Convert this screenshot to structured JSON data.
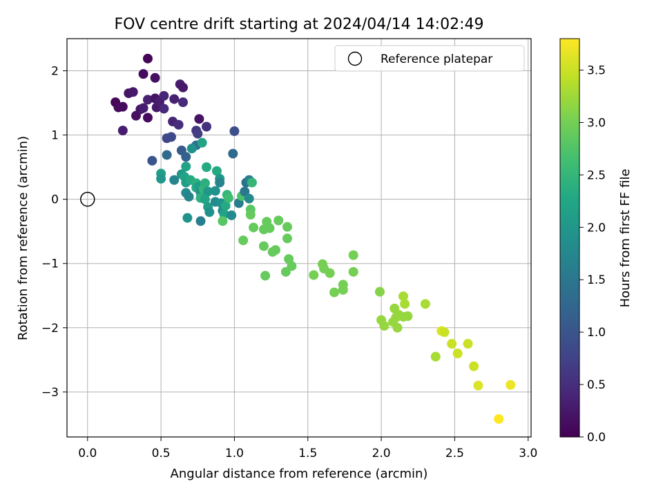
{
  "chart_data": {
    "type": "scatter",
    "title": "FOV centre drift starting at 2024/04/14 14:02:49",
    "xlabel": "Angular distance from reference (arcmin)",
    "ylabel": "Rotation from reference (arcmin)",
    "xlim": [
      -0.14,
      3.02
    ],
    "ylim": [
      -3.7,
      2.5
    ],
    "xticks": [
      0.0,
      0.5,
      1.0,
      1.5,
      2.0,
      2.5,
      3.0
    ],
    "xtick_labels": [
      "0.0",
      "0.5",
      "1.0",
      "1.5",
      "2.0",
      "2.5",
      "3.0"
    ],
    "yticks": [
      -3,
      -2,
      -1,
      0,
      1,
      2
    ],
    "ytick_labels": [
      "−3",
      "−2",
      "−1",
      "0",
      "1",
      "2"
    ],
    "grid": true,
    "legend": {
      "position": "upper right",
      "label": "Reference platepar"
    },
    "reference_point": {
      "x": 0.0,
      "y": 0.0
    },
    "colorbar": {
      "label": "Hours from first FF file",
      "colormap": "viridis",
      "range": [
        0.0,
        3.8
      ],
      "ticks": [
        0.0,
        0.5,
        1.0,
        1.5,
        2.0,
        2.5,
        3.0,
        3.5
      ],
      "tick_labels": [
        "0.0",
        "0.5",
        "1.0",
        "1.5",
        "2.0",
        "2.5",
        "3.0",
        "3.5"
      ]
    },
    "points": [
      {
        "x": 0.41,
        "y": 2.19,
        "c": 0.05
      },
      {
        "x": 0.38,
        "y": 1.95,
        "c": 0.1
      },
      {
        "x": 0.46,
        "y": 1.89,
        "c": 0.15
      },
      {
        "x": 0.19,
        "y": 1.51,
        "c": 0.05
      },
      {
        "x": 0.21,
        "y": 1.43,
        "c": 0.1
      },
      {
        "x": 0.24,
        "y": 1.44,
        "c": 0.12
      },
      {
        "x": 0.28,
        "y": 1.65,
        "c": 0.2
      },
      {
        "x": 0.31,
        "y": 1.67,
        "c": 0.25
      },
      {
        "x": 0.33,
        "y": 1.3,
        "c": 0.15
      },
      {
        "x": 0.36,
        "y": 1.4,
        "c": 0.2
      },
      {
        "x": 0.38,
        "y": 1.42,
        "c": 0.3
      },
      {
        "x": 0.41,
        "y": 1.27,
        "c": 0.1
      },
      {
        "x": 0.41,
        "y": 1.55,
        "c": 0.35
      },
      {
        "x": 0.46,
        "y": 1.57,
        "c": 0.2
      },
      {
        "x": 0.47,
        "y": 1.43,
        "c": 0.25
      },
      {
        "x": 0.49,
        "y": 1.52,
        "c": 0.3
      },
      {
        "x": 0.52,
        "y": 1.61,
        "c": 0.4
      },
      {
        "x": 0.52,
        "y": 1.41,
        "c": 0.45
      },
      {
        "x": 0.59,
        "y": 1.56,
        "c": 0.35
      },
      {
        "x": 0.63,
        "y": 1.79,
        "c": 0.3
      },
      {
        "x": 0.65,
        "y": 1.74,
        "c": 0.25
      },
      {
        "x": 0.65,
        "y": 1.51,
        "c": 0.45
      },
      {
        "x": 0.58,
        "y": 1.21,
        "c": 0.4
      },
      {
        "x": 0.62,
        "y": 1.16,
        "c": 0.5
      },
      {
        "x": 0.24,
        "y": 1.07,
        "c": 0.3
      },
      {
        "x": 0.76,
        "y": 1.25,
        "c": 0.2
      },
      {
        "x": 0.74,
        "y": 1.07,
        "c": 0.6
      },
      {
        "x": 0.75,
        "y": 1.02,
        "c": 0.7
      },
      {
        "x": 0.81,
        "y": 1.13,
        "c": 0.55
      },
      {
        "x": 0.54,
        "y": 0.95,
        "c": 0.8
      },
      {
        "x": 0.57,
        "y": 0.97,
        "c": 0.85
      },
      {
        "x": 1.0,
        "y": 1.06,
        "c": 0.9
      },
      {
        "x": 0.44,
        "y": 0.6,
        "c": 1.0
      },
      {
        "x": 0.54,
        "y": 0.69,
        "c": 1.3
      },
      {
        "x": 0.64,
        "y": 0.76,
        "c": 1.1
      },
      {
        "x": 0.67,
        "y": 0.66,
        "c": 1.2
      },
      {
        "x": 0.74,
        "y": 0.84,
        "c": 1.4
      },
      {
        "x": 0.71,
        "y": 0.79,
        "c": 1.9
      },
      {
        "x": 0.78,
        "y": 0.88,
        "c": 2.2
      },
      {
        "x": 0.99,
        "y": 0.71,
        "c": 1.3
      },
      {
        "x": 0.5,
        "y": 0.4,
        "c": 2.1
      },
      {
        "x": 0.5,
        "y": 0.32,
        "c": 2.0
      },
      {
        "x": 0.59,
        "y": 0.3,
        "c": 1.7
      },
      {
        "x": 0.64,
        "y": 0.39,
        "c": 2.0
      },
      {
        "x": 0.66,
        "y": 0.35,
        "c": 2.2
      },
      {
        "x": 0.67,
        "y": 0.51,
        "c": 2.2
      },
      {
        "x": 0.67,
        "y": 0.26,
        "c": 2.1
      },
      {
        "x": 0.67,
        "y": 0.1,
        "c": 1.8
      },
      {
        "x": 0.69,
        "y": 0.04,
        "c": 1.7
      },
      {
        "x": 0.7,
        "y": 0.3,
        "c": 2.3
      },
      {
        "x": 0.74,
        "y": 0.25,
        "c": 2.4
      },
      {
        "x": 0.74,
        "y": 0.18,
        "c": 2.3
      },
      {
        "x": 0.76,
        "y": 0.2,
        "c": 2.1
      },
      {
        "x": 0.77,
        "y": 0.1,
        "c": 1.9
      },
      {
        "x": 0.77,
        "y": 0.02,
        "c": 2.4
      },
      {
        "x": 0.79,
        "y": 0.16,
        "c": 2.5
      },
      {
        "x": 0.8,
        "y": 0.25,
        "c": 2.4
      },
      {
        "x": 0.81,
        "y": 0.5,
        "c": 2.3
      },
      {
        "x": 0.82,
        "y": 0.12,
        "c": 2.0
      },
      {
        "x": 0.8,
        "y": 0.0,
        "c": 2.2
      },
      {
        "x": 0.82,
        "y": -0.12,
        "c": 2.1
      },
      {
        "x": 0.83,
        "y": -0.2,
        "c": 1.9
      },
      {
        "x": 0.87,
        "y": 0.13,
        "c": 1.9
      },
      {
        "x": 0.88,
        "y": 0.44,
        "c": 2.3
      },
      {
        "x": 0.87,
        "y": -0.04,
        "c": 1.8
      },
      {
        "x": 0.9,
        "y": 0.32,
        "c": 2.0
      },
      {
        "x": 0.9,
        "y": 0.26,
        "c": 1.7
      },
      {
        "x": 0.91,
        "y": -0.06,
        "c": 1.9
      },
      {
        "x": 0.92,
        "y": -0.18,
        "c": 1.8
      },
      {
        "x": 0.93,
        "y": -0.23,
        "c": 2.2
      },
      {
        "x": 0.94,
        "y": -0.1,
        "c": 2.3
      },
      {
        "x": 0.95,
        "y": 0.07,
        "c": 2.5
      },
      {
        "x": 0.96,
        "y": 0.02,
        "c": 2.6
      },
      {
        "x": 0.98,
        "y": -0.25,
        "c": 1.8
      },
      {
        "x": 0.92,
        "y": -0.34,
        "c": 2.8
      },
      {
        "x": 0.68,
        "y": -0.29,
        "c": 1.9
      },
      {
        "x": 0.77,
        "y": -0.34,
        "c": 1.6
      },
      {
        "x": 1.03,
        "y": -0.06,
        "c": 1.6
      },
      {
        "x": 1.05,
        "y": 0.05,
        "c": 2.7
      },
      {
        "x": 1.07,
        "y": 0.12,
        "c": 1.5
      },
      {
        "x": 1.08,
        "y": 0.26,
        "c": 1.4
      },
      {
        "x": 1.1,
        "y": 0.01,
        "c": 1.8
      },
      {
        "x": 1.1,
        "y": 0.3,
        "c": 1.6
      },
      {
        "x": 1.12,
        "y": 0.26,
        "c": 2.5
      },
      {
        "x": 1.11,
        "y": -0.16,
        "c": 2.8
      },
      {
        "x": 1.11,
        "y": -0.24,
        "c": 2.9
      },
      {
        "x": 1.13,
        "y": -0.44,
        "c": 2.9
      },
      {
        "x": 1.06,
        "y": -0.64,
        "c": 2.9
      },
      {
        "x": 1.2,
        "y": -0.47,
        "c": 2.9
      },
      {
        "x": 1.22,
        "y": -0.35,
        "c": 2.9
      },
      {
        "x": 1.24,
        "y": -0.45,
        "c": 2.9
      },
      {
        "x": 1.2,
        "y": -0.73,
        "c": 2.9
      },
      {
        "x": 1.26,
        "y": -0.82,
        "c": 2.9
      },
      {
        "x": 1.28,
        "y": -0.79,
        "c": 2.9
      },
      {
        "x": 1.3,
        "y": -0.33,
        "c": 2.9
      },
      {
        "x": 1.36,
        "y": -0.43,
        "c": 2.9
      },
      {
        "x": 1.36,
        "y": -0.61,
        "c": 2.9
      },
      {
        "x": 1.37,
        "y": -0.93,
        "c": 2.9
      },
      {
        "x": 1.39,
        "y": -1.04,
        "c": 2.9
      },
      {
        "x": 1.35,
        "y": -1.13,
        "c": 2.9
      },
      {
        "x": 1.21,
        "y": -1.19,
        "c": 2.9
      },
      {
        "x": 1.54,
        "y": -1.18,
        "c": 3.0
      },
      {
        "x": 1.6,
        "y": -1.01,
        "c": 3.0
      },
      {
        "x": 1.61,
        "y": -1.08,
        "c": 3.0
      },
      {
        "x": 1.65,
        "y": -1.15,
        "c": 3.0
      },
      {
        "x": 1.68,
        "y": -1.45,
        "c": 3.0
      },
      {
        "x": 1.74,
        "y": -1.33,
        "c": 3.0
      },
      {
        "x": 1.74,
        "y": -1.41,
        "c": 3.0
      },
      {
        "x": 1.81,
        "y": -0.87,
        "c": 3.0
      },
      {
        "x": 1.81,
        "y": -1.13,
        "c": 3.0
      },
      {
        "x": 1.99,
        "y": -1.44,
        "c": 3.1
      },
      {
        "x": 2.0,
        "y": -1.88,
        "c": 3.2
      },
      {
        "x": 2.02,
        "y": -1.97,
        "c": 3.2
      },
      {
        "x": 2.08,
        "y": -1.91,
        "c": 3.2
      },
      {
        "x": 2.09,
        "y": -1.7,
        "c": 3.2
      },
      {
        "x": 2.1,
        "y": -1.84,
        "c": 3.2
      },
      {
        "x": 2.11,
        "y": -2.0,
        "c": 3.2
      },
      {
        "x": 2.12,
        "y": -1.8,
        "c": 3.2
      },
      {
        "x": 2.15,
        "y": -1.51,
        "c": 3.3
      },
      {
        "x": 2.16,
        "y": -1.63,
        "c": 3.3
      },
      {
        "x": 2.15,
        "y": -1.83,
        "c": 3.2
      },
      {
        "x": 2.18,
        "y": -1.82,
        "c": 3.2
      },
      {
        "x": 2.3,
        "y": -1.63,
        "c": 3.3
      },
      {
        "x": 2.37,
        "y": -2.45,
        "c": 3.3
      },
      {
        "x": 2.41,
        "y": -2.05,
        "c": 3.6
      },
      {
        "x": 2.43,
        "y": -2.07,
        "c": 3.5
      },
      {
        "x": 2.48,
        "y": -2.25,
        "c": 3.5
      },
      {
        "x": 2.52,
        "y": -2.4,
        "c": 3.5
      },
      {
        "x": 2.59,
        "y": -2.25,
        "c": 3.5
      },
      {
        "x": 2.63,
        "y": -2.6,
        "c": 3.5
      },
      {
        "x": 2.66,
        "y": -2.9,
        "c": 3.6
      },
      {
        "x": 2.8,
        "y": -3.42,
        "c": 3.8
      },
      {
        "x": 2.88,
        "y": -2.89,
        "c": 3.7
      }
    ]
  }
}
